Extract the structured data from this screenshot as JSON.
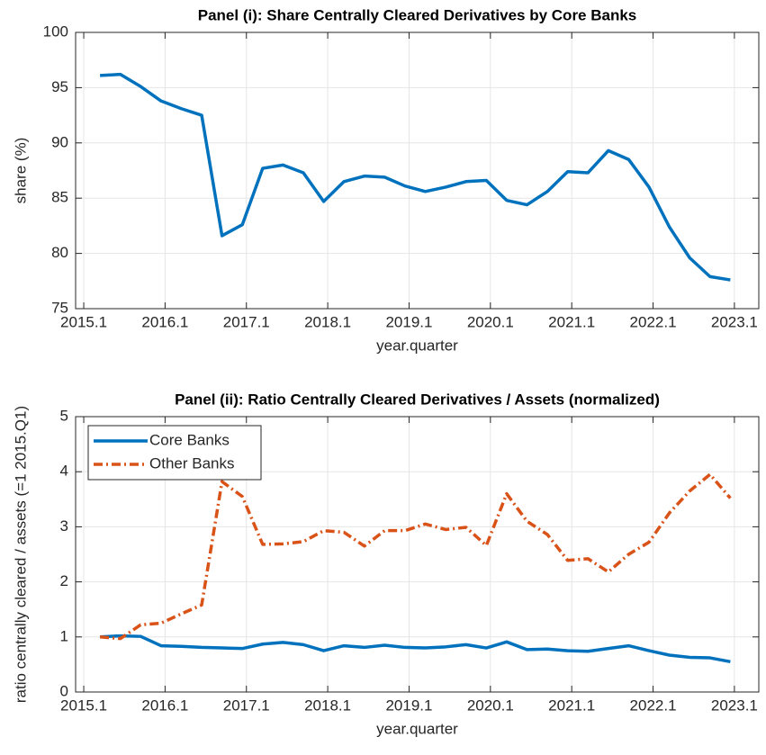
{
  "chart_data": [
    {
      "type": "line",
      "title": "Panel (i): Share Centrally Cleared Derivatives by Core Banks",
      "xlabel": "year.quarter",
      "ylabel": "share (%)",
      "x": [
        2015.3,
        2015.55,
        2015.8,
        2016.05,
        2016.3,
        2016.55,
        2016.8,
        2017.05,
        2017.3,
        2017.55,
        2017.8,
        2018.05,
        2018.3,
        2018.55,
        2018.8,
        2019.05,
        2019.3,
        2019.55,
        2019.8,
        2020.05,
        2020.3,
        2020.55,
        2020.8,
        2021.05,
        2021.3,
        2021.55,
        2021.8,
        2022.05,
        2022.3,
        2022.55,
        2022.8,
        2023.05
      ],
      "series": [
        {
          "name": "Core Banks",
          "color": "#0072bd",
          "line_style": "solid",
          "values": [
            96.1,
            96.2,
            95.1,
            93.8,
            93.1,
            92.5,
            81.6,
            82.6,
            87.7,
            88.0,
            87.3,
            84.7,
            86.5,
            87.0,
            86.9,
            86.1,
            85.6,
            86.0,
            86.5,
            86.6,
            84.8,
            84.4,
            85.6,
            87.4,
            87.3,
            89.3,
            88.5,
            86.0,
            82.4,
            79.6,
            77.9,
            77.6
          ]
        }
      ],
      "xlim": [
        2015.0,
        2023.4
      ],
      "xticks": [
        2015.1,
        2016.1,
        2017.1,
        2018.1,
        2019.1,
        2020.1,
        2021.1,
        2022.1,
        2023.1
      ],
      "ylim": [
        75,
        100
      ],
      "yticks": [
        75,
        80,
        85,
        90,
        95,
        100
      ],
      "grid": true,
      "legend": false
    },
    {
      "type": "line",
      "title": "Panel (ii): Ratio Centrally Cleared Derivatives / Assets (normalized)",
      "xlabel": "year.quarter",
      "ylabel": "ratio centrally cleared / assets (=1 2015.Q1)",
      "x": [
        2015.3,
        2015.55,
        2015.8,
        2016.05,
        2016.3,
        2016.55,
        2016.8,
        2017.05,
        2017.3,
        2017.55,
        2017.8,
        2018.05,
        2018.3,
        2018.55,
        2018.8,
        2019.05,
        2019.3,
        2019.55,
        2019.8,
        2020.05,
        2020.3,
        2020.55,
        2020.8,
        2021.05,
        2021.3,
        2021.55,
        2021.8,
        2022.05,
        2022.3,
        2022.55,
        2022.8,
        2023.05
      ],
      "series": [
        {
          "name": "Core Banks",
          "color": "#0072bd",
          "line_style": "solid",
          "values": [
            1.0,
            1.02,
            1.01,
            0.84,
            0.83,
            0.81,
            0.8,
            0.79,
            0.87,
            0.9,
            0.86,
            0.75,
            0.84,
            0.81,
            0.85,
            0.81,
            0.8,
            0.82,
            0.86,
            0.8,
            0.91,
            0.77,
            0.78,
            0.75,
            0.74,
            0.79,
            0.84,
            0.75,
            0.67,
            0.63,
            0.62,
            0.55
          ]
        },
        {
          "name": "Other Banks",
          "color": "#d95319",
          "line_style": "dash-dot",
          "values": [
            1.0,
            0.97,
            1.22,
            1.25,
            1.42,
            1.58,
            3.82,
            3.55,
            2.68,
            2.69,
            2.73,
            2.93,
            2.9,
            2.65,
            2.93,
            2.93,
            3.05,
            2.95,
            2.99,
            2.66,
            3.6,
            3.1,
            2.86,
            2.39,
            2.42,
            2.18,
            2.5,
            2.72,
            3.25,
            3.65,
            3.95,
            3.52
          ]
        }
      ],
      "xlim": [
        2015.0,
        2023.4
      ],
      "xticks": [
        2015.1,
        2016.1,
        2017.1,
        2018.1,
        2019.1,
        2020.1,
        2021.1,
        2022.1,
        2023.1
      ],
      "ylim": [
        0,
        5
      ],
      "yticks": [
        0,
        1,
        2,
        3,
        4,
        5
      ],
      "grid": true,
      "legend": "upper left"
    }
  ]
}
